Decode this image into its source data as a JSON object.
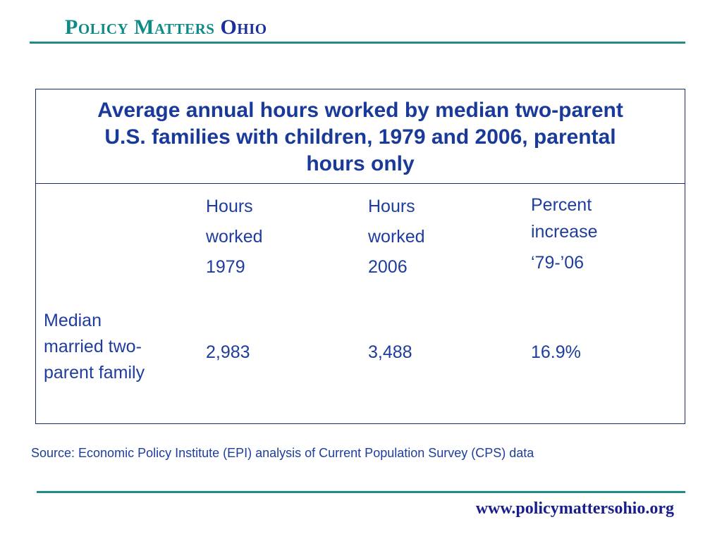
{
  "header": {
    "brand_part1": "Policy Matters",
    "brand_part2": "Ohio"
  },
  "table": {
    "title_lines": [
      "Average annual hours worked by median two-parent",
      "U.S. families with children, 1979 and 2006, parental",
      "hours only"
    ],
    "columns": [
      {
        "lines": [
          "Hours",
          "worked",
          "1979"
        ]
      },
      {
        "lines": [
          "Hours",
          "worked",
          "2006"
        ]
      },
      {
        "lines": [
          "Percent",
          "increase",
          "‘79-’06"
        ]
      }
    ],
    "row": {
      "label_lines": [
        "Median",
        "married two-",
        "parent family"
      ],
      "values": [
        "2,983",
        "3,488",
        "16.9%"
      ]
    }
  },
  "source": "Source: Economic Policy Institute (EPI) analysis of Current Population Survey (CPS) data",
  "footer": {
    "url": "www.policymattersohio.org"
  },
  "colors": {
    "brand_teal": "#0f8b86",
    "brand_blue": "#1a2f9c",
    "rule": "#1f8c8a",
    "text_blue": "#1e3d9e",
    "title_blue": "#1a3a9a"
  }
}
